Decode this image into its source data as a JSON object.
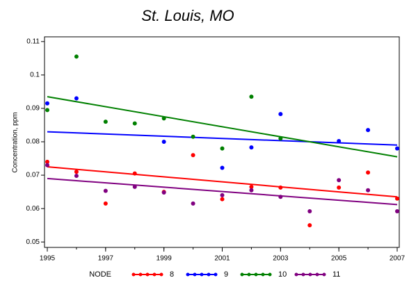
{
  "chart_data": {
    "type": "scatter",
    "title": "St. Louis, MO",
    "y_label": "Concentration, ppm",
    "legend_title": "NODE",
    "x": [
      1995,
      1996,
      1997,
      1998,
      1999,
      2000,
      2001,
      2002,
      2003,
      2004,
      2005,
      2006,
      2007
    ],
    "series": [
      {
        "name": "8",
        "color": "#ff0000",
        "values": [
          0.074,
          0.071,
          0.0615,
          0.0705,
          0.065,
          0.076,
          0.0628,
          0.0665,
          0.0663,
          0.055,
          0.0663,
          0.0708,
          0.063
        ],
        "trend": [
          0.0725,
          0.0635
        ]
      },
      {
        "name": "9",
        "color": "#0000ff",
        "values": [
          0.0915,
          0.093,
          null,
          null,
          0.08,
          null,
          0.0722,
          0.0783,
          0.0883,
          null,
          0.0802,
          0.0835,
          0.078
        ],
        "trend": [
          0.083,
          0.079
        ]
      },
      {
        "name": "10",
        "color": "#008000",
        "values": [
          0.0895,
          0.1055,
          0.086,
          0.0855,
          0.087,
          0.0815,
          0.078,
          0.0935,
          0.081,
          null,
          null,
          null,
          null
        ],
        "trend": [
          0.0935,
          0.0755
        ]
      },
      {
        "name": "11",
        "color": "#800080",
        "values": [
          0.073,
          0.0698,
          0.0653,
          0.0665,
          0.0648,
          0.0615,
          0.064,
          0.0655,
          0.0635,
          0.0592,
          0.0685,
          0.0655,
          0.0592
        ],
        "trend": [
          0.069,
          0.0612
        ]
      }
    ],
    "xlim": [
      1995,
      2007
    ],
    "xticks": [
      1995,
      1997,
      1999,
      2001,
      2003,
      2005,
      2007
    ],
    "ylim": [
      0.049,
      0.111
    ],
    "yticks": [
      0.05,
      0.06,
      0.07,
      0.08,
      0.09,
      0.1,
      0.11
    ]
  }
}
